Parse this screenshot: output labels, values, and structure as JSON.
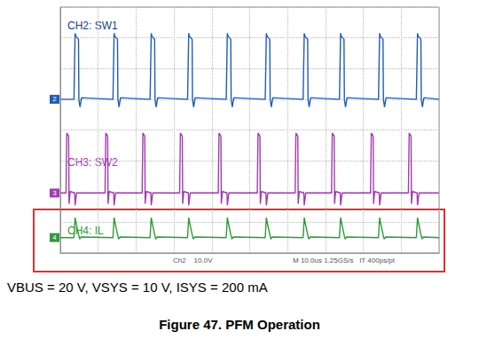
{
  "chart_data": {
    "type": "line",
    "title": "Figure 47. PFM Operation",
    "subtitle": "VBUS = 20 V, VSYS = 10 V, ISYS = 200 mA",
    "annotations": [
      "Ch2    10.0V",
      "M 10.0us 1.25GS/s   IT 400ps/pt"
    ],
    "xlim": [
      0,
      100
    ],
    "xticks": [
      0,
      10,
      20,
      30,
      40,
      50,
      60,
      70,
      80,
      90,
      100
    ],
    "ylim": [
      0,
      8
    ],
    "yticks": [
      0,
      1,
      2,
      3,
      4,
      5,
      6,
      7,
      8
    ],
    "grid": true,
    "tick_labels": false,
    "series": [
      {
        "name": "CH2: SW1",
        "color": "#1f5cb5",
        "ground_marker": "2",
        "x": [
          0,
          3.6,
          3.9,
          4.1,
          4.8,
          4.9,
          5.2,
          5.6,
          13.9,
          14.2,
          14.4,
          15.1,
          15.2,
          15.5,
          15.9,
          23.7,
          24.0,
          24.2,
          24.9,
          25.0,
          25.3,
          25.7,
          33.6,
          33.9,
          34.1,
          34.8,
          34.9,
          35.2,
          35.6,
          43.8,
          44.1,
          44.3,
          45.0,
          45.1,
          45.4,
          45.8,
          54.1,
          54.4,
          54.6,
          55.3,
          55.4,
          55.7,
          56.1,
          64.1,
          64.4,
          64.6,
          65.3,
          65.4,
          65.7,
          66.1,
          73.7,
          74.0,
          74.2,
          74.9,
          75.0,
          75.3,
          75.7,
          84.0,
          84.3,
          84.5,
          85.2,
          85.3,
          85.6,
          86.0,
          94.0,
          94.3,
          94.5,
          95.2,
          95.3,
          95.6,
          96.0,
          100
        ],
        "values": [
          5.0,
          5.0,
          7.15,
          7.05,
          6.95,
          5.0,
          4.75,
          5.05,
          5.0,
          7.15,
          7.05,
          6.95,
          5.0,
          4.75,
          5.05,
          5.0,
          7.15,
          7.05,
          6.95,
          5.0,
          4.75,
          5.05,
          5.0,
          7.15,
          7.05,
          6.95,
          5.0,
          4.75,
          5.05,
          5.0,
          7.15,
          7.05,
          6.95,
          5.0,
          4.75,
          5.05,
          5.0,
          7.15,
          7.05,
          6.95,
          5.0,
          4.75,
          5.05,
          5.0,
          7.15,
          7.05,
          6.95,
          5.0,
          4.75,
          5.05,
          5.0,
          7.15,
          7.05,
          6.95,
          5.0,
          4.75,
          5.05,
          5.0,
          7.15,
          7.05,
          6.95,
          5.0,
          4.75,
          5.05,
          5.0,
          7.15,
          7.05,
          6.95,
          5.0,
          4.75,
          5.05,
          5.0
        ]
      },
      {
        "name": "CH3: SW2",
        "color": "#a23bb0",
        "ground_marker": "3",
        "x": [
          0,
          1.5,
          1.7,
          2.2,
          2.3,
          2.6,
          3.8,
          3.9,
          4.3,
          11.8,
          12.0,
          12.5,
          12.6,
          12.9,
          14.1,
          14.2,
          14.6,
          21.6,
          21.8,
          22.3,
          22.4,
          22.7,
          23.9,
          24.0,
          24.4,
          31.5,
          31.7,
          32.2,
          32.3,
          32.6,
          33.8,
          33.9,
          34.3,
          41.7,
          41.9,
          42.4,
          42.5,
          42.8,
          44.0,
          44.1,
          44.5,
          52.0,
          52.2,
          52.7,
          52.8,
          53.1,
          54.3,
          54.4,
          54.8,
          62.0,
          62.2,
          62.7,
          62.8,
          63.1,
          64.3,
          64.4,
          64.8,
          71.6,
          71.8,
          72.3,
          72.4,
          72.7,
          73.9,
          74.0,
          74.4,
          81.9,
          82.1,
          82.6,
          82.7,
          83.0,
          84.2,
          84.3,
          84.7,
          91.9,
          92.1,
          92.6,
          92.7,
          93.0,
          94.2,
          94.3,
          94.7,
          100
        ],
        "values": [
          1.95,
          1.95,
          3.9,
          3.8,
          1.6,
          2.0,
          1.95,
          1.55,
          1.95,
          1.95,
          3.9,
          3.8,
          1.6,
          2.0,
          1.95,
          1.55,
          1.95,
          1.95,
          3.9,
          3.8,
          1.6,
          2.0,
          1.95,
          1.55,
          1.95,
          1.95,
          3.9,
          3.8,
          1.6,
          2.0,
          1.95,
          1.55,
          1.95,
          1.95,
          3.9,
          3.8,
          1.6,
          2.0,
          1.95,
          1.55,
          1.95,
          1.95,
          3.9,
          3.8,
          1.6,
          2.0,
          1.95,
          1.55,
          1.95,
          1.95,
          3.9,
          3.8,
          1.6,
          2.0,
          1.95,
          1.55,
          1.95,
          1.95,
          3.9,
          3.8,
          1.6,
          2.0,
          1.95,
          1.55,
          1.95,
          1.95,
          3.9,
          3.8,
          1.6,
          2.0,
          1.95,
          1.55,
          1.95,
          1.95,
          3.9,
          3.8,
          1.6,
          2.0,
          1.95,
          1.55,
          1.95,
          1.95
        ]
      },
      {
        "name": "CH4: IL",
        "color": "#2e9a3a",
        "ground_marker": "4",
        "x": [
          0,
          3.6,
          3.9,
          4.2,
          4.8,
          5.1,
          5.5,
          13.9,
          14.2,
          14.5,
          15.1,
          15.4,
          15.8,
          23.7,
          24.0,
          24.3,
          24.9,
          25.2,
          25.6,
          33.6,
          33.9,
          34.2,
          34.8,
          35.1,
          35.5,
          43.8,
          44.1,
          44.4,
          45.0,
          45.3,
          45.7,
          54.1,
          54.4,
          54.7,
          55.3,
          55.6,
          56.0,
          64.1,
          64.4,
          64.7,
          65.3,
          65.6,
          66.0,
          73.7,
          74.0,
          74.3,
          74.9,
          75.2,
          75.6,
          84.0,
          84.3,
          84.6,
          85.2,
          85.5,
          85.9,
          94.0,
          94.3,
          94.6,
          95.2,
          95.5,
          95.9,
          100
        ],
        "values": [
          0.5,
          0.5,
          1.15,
          0.95,
          0.6,
          0.45,
          0.52,
          0.5,
          1.15,
          0.95,
          0.6,
          0.45,
          0.52,
          0.5,
          1.15,
          0.95,
          0.6,
          0.45,
          0.52,
          0.5,
          1.15,
          0.95,
          0.6,
          0.45,
          0.52,
          0.5,
          1.15,
          0.95,
          0.6,
          0.45,
          0.52,
          0.5,
          1.15,
          0.95,
          0.6,
          0.45,
          0.52,
          0.5,
          1.15,
          0.95,
          0.6,
          0.45,
          0.52,
          0.5,
          1.15,
          0.95,
          0.6,
          0.45,
          0.52,
          0.5,
          1.15,
          0.95,
          0.6,
          0.45,
          0.52,
          0.5,
          1.15,
          0.95,
          0.6,
          0.45,
          0.52,
          0.5
        ]
      }
    ]
  }
}
